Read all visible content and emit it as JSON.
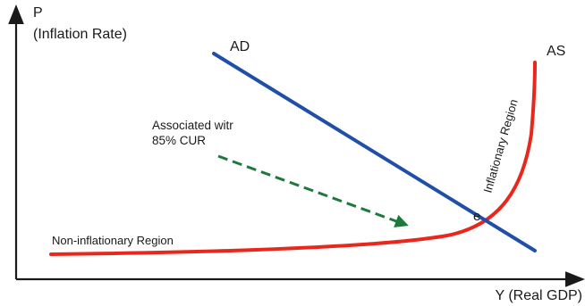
{
  "axes": {
    "y_symbol": "P",
    "y_label": "(Inflation Rate)",
    "x_label": "Y (Real GDP)"
  },
  "curves": {
    "ad": {
      "label": "AD",
      "color": "#1f4fa8"
    },
    "as": {
      "label": "AS",
      "color": "#e8281c"
    }
  },
  "annotations": {
    "associated_line1": "Associated witr",
    "associated_line2": "85% CUR",
    "arrow_color": "#1e7a3a",
    "equilibrium_label": "e",
    "inflationary_region": "Inflationary Region",
    "non_inflationary_region": "Non-inflationary Region"
  }
}
